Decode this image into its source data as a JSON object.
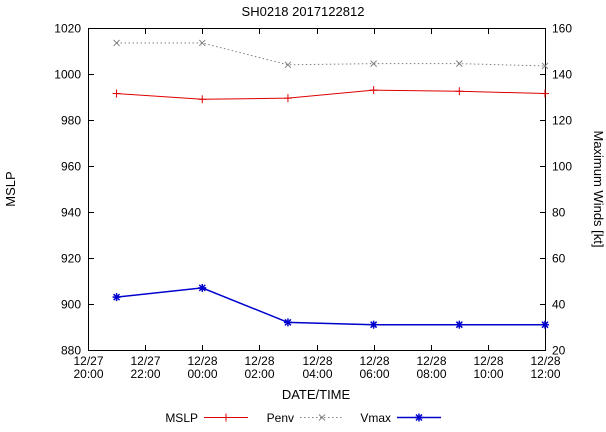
{
  "chart_data": {
    "type": "line",
    "title": "SH0218 2017122812",
    "xlabel": "DATE/TIME",
    "ylabel_left": "MSLP",
    "ylabel_right": "Maximum Winds [kt]",
    "x_range": [
      0,
      16
    ],
    "left_range": [
      880,
      1020
    ],
    "right_range": [
      20,
      160
    ],
    "left_ticks": [
      880,
      900,
      920,
      940,
      960,
      980,
      1000,
      1020
    ],
    "right_ticks": [
      20,
      40,
      60,
      80,
      100,
      120,
      140,
      160
    ],
    "x_ticks": [
      {
        "hour": 0,
        "date": "12/27",
        "time": "20:00"
      },
      {
        "hour": 2,
        "date": "12/27",
        "time": "22:00"
      },
      {
        "hour": 4,
        "date": "12/28",
        "time": "00:00"
      },
      {
        "hour": 6,
        "date": "12/28",
        "time": "02:00"
      },
      {
        "hour": 8,
        "date": "12/28",
        "time": "04:00"
      },
      {
        "hour": 10,
        "date": "12/28",
        "time": "06:00"
      },
      {
        "hour": 12,
        "date": "12/28",
        "time": "08:00"
      },
      {
        "hour": 14,
        "date": "12/28",
        "time": "10:00"
      },
      {
        "hour": 16,
        "date": "12/28",
        "time": "12:00"
      }
    ],
    "x_hours": [
      1,
      4,
      7,
      10,
      13,
      16
    ],
    "point_labels": [
      "12/27 21:00",
      "12/28 00:00",
      "12/28 03:00",
      "12/28 06:00",
      "12/28 09:00",
      "12/28 12:00"
    ],
    "series": [
      {
        "name": "MSLP",
        "axis": "left",
        "color": "#e00000",
        "dash": "solid",
        "marker": "plus",
        "width": 1,
        "values": [
          991.5,
          989.0,
          989.5,
          993.0,
          992.5,
          991.5
        ]
      },
      {
        "name": "Penv",
        "axis": "left",
        "color": "#808080",
        "dash": "dotted",
        "marker": "cross",
        "width": 1,
        "values": [
          1013.5,
          1013.5,
          1004.0,
          1004.5,
          1004.5,
          1003.5
        ]
      },
      {
        "name": "Vmax",
        "axis": "right",
        "color": "#0000cd",
        "dash": "solid",
        "marker": "star",
        "width": 1.5,
        "values": [
          43,
          47,
          32,
          31,
          31,
          31
        ]
      }
    ],
    "legend_position": "bottom-center",
    "grid": false
  }
}
